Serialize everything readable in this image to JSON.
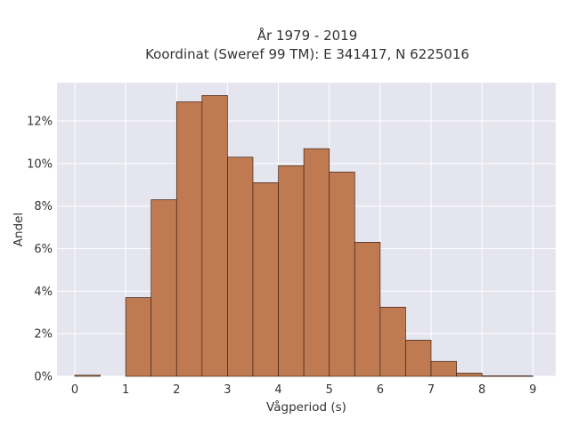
{
  "chart_data": {
    "type": "bar",
    "title": "År 1979 - 2019",
    "subtitle": "Koordinat (Sweref 99 TM): E 341417, N 6225016",
    "xlabel": "Vågperiod (s)",
    "ylabel": "Andel",
    "xlim": [
      -0.35,
      9.45
    ],
    "ylim": [
      0,
      13.8
    ],
    "x_ticks": [
      0,
      1,
      2,
      3,
      4,
      5,
      6,
      7,
      8,
      9
    ],
    "y_ticks": [
      0,
      2,
      4,
      6,
      8,
      10,
      12
    ],
    "y_tick_format": "percent",
    "grid": true,
    "bin_width": 0.5,
    "bins": [
      {
        "x0": 0.0,
        "x1": 0.5,
        "value": 0.05
      },
      {
        "x0": 0.5,
        "x1": 1.0,
        "value": 0.0
      },
      {
        "x0": 1.0,
        "x1": 1.5,
        "value": 3.7
      },
      {
        "x0": 1.5,
        "x1": 2.0,
        "value": 8.3
      },
      {
        "x0": 2.0,
        "x1": 2.5,
        "value": 12.9
      },
      {
        "x0": 2.5,
        "x1": 3.0,
        "value": 13.2
      },
      {
        "x0": 3.0,
        "x1": 3.5,
        "value": 10.3
      },
      {
        "x0": 3.5,
        "x1": 4.0,
        "value": 9.1
      },
      {
        "x0": 4.0,
        "x1": 4.5,
        "value": 9.9
      },
      {
        "x0": 4.5,
        "x1": 5.0,
        "value": 10.7
      },
      {
        "x0": 5.0,
        "x1": 5.5,
        "value": 9.6
      },
      {
        "x0": 5.5,
        "x1": 6.0,
        "value": 6.3
      },
      {
        "x0": 6.0,
        "x1": 6.5,
        "value": 3.25
      },
      {
        "x0": 6.5,
        "x1": 7.0,
        "value": 1.7
      },
      {
        "x0": 7.0,
        "x1": 7.5,
        "value": 0.7
      },
      {
        "x0": 7.5,
        "x1": 8.0,
        "value": 0.15
      },
      {
        "x0": 8.0,
        "x1": 8.5,
        "value": 0.02
      },
      {
        "x0": 8.5,
        "x1": 9.0,
        "value": 0.02
      }
    ],
    "colors": {
      "bar_fill": "#c07a52",
      "bar_edge": "#3d2416",
      "plot_background": "#e5e5ef",
      "grid": "#ffffff"
    }
  }
}
